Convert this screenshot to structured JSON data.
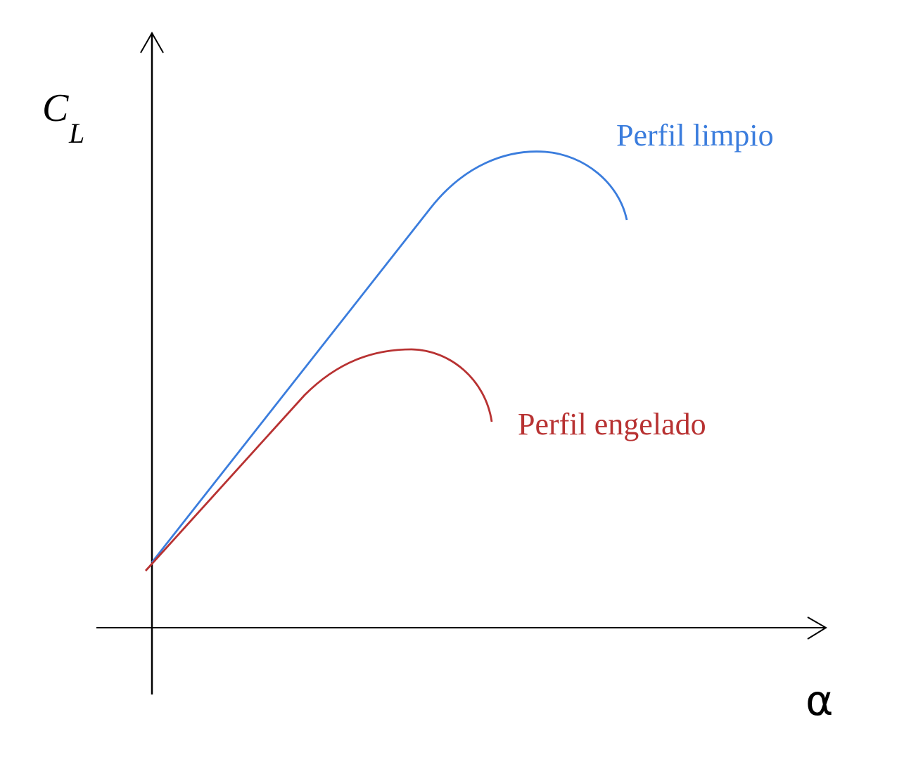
{
  "axes": {
    "y_label": "C",
    "y_label_subscript": "L",
    "x_label": "α"
  },
  "curves": [
    {
      "label": "Perfil limpio",
      "color": "#3b7ddd"
    },
    {
      "label": "Perfil engelado",
      "color": "#b83232"
    }
  ]
}
